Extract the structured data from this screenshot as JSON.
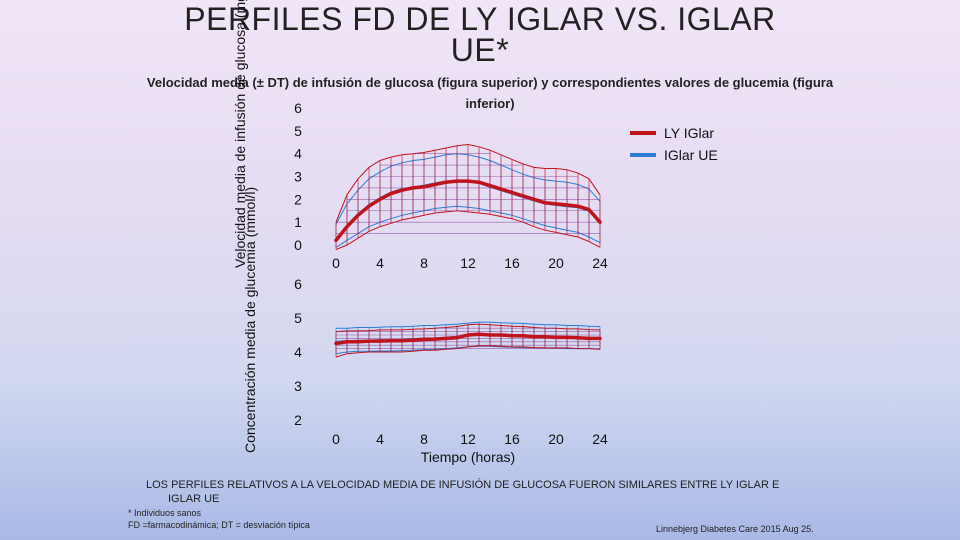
{
  "title": "PERFILES FD DE LY IGLAR VS. IGLAR UE*",
  "subtitle": "Velocidad media (± DT) de infusión de glucosa (figura superior) y correspondientes valores de glucemia (figura inferior)",
  "note": {
    "line1": "LOS PERFILES RELATIVOS A LA VELOCIDAD MEDIA DE INFUSIÓN DE GLUCOSA FUERON SIMILARES ENTRE LY IGLAR E",
    "line2": "IGLAR UE"
  },
  "footnotes": {
    "asterisk": "* Individuos sanos",
    "abbrev": "FD =farmacodinámica; DT = desviación típica"
  },
  "reference": "Linnebjerg Diabetes Care 2015 Aug 25.",
  "colors": {
    "ly": "#c0141c",
    "ue": "#2a7fd4"
  },
  "legend": {
    "ly": "LY IGlar",
    "ue": "IGlar UE"
  },
  "chart_data": [
    {
      "type": "line",
      "title": "",
      "ylabel": "Velocidad media de infusión de glucosa (mg/kg/min)",
      "xlabel": "",
      "xticks": [
        "0",
        "4",
        "8",
        "12",
        "16",
        "20",
        "24"
      ],
      "yticks": [
        "0",
        "1",
        "2",
        "3",
        "4",
        "5",
        "6"
      ],
      "xlim": [
        0,
        24
      ],
      "ylim": [
        0,
        6
      ],
      "series": [
        {
          "name": "LY IGlar",
          "x": [
            0,
            1,
            2,
            3,
            4,
            5,
            6,
            7,
            8,
            9,
            10,
            11,
            12,
            13,
            14,
            15,
            16,
            17,
            18,
            19,
            20,
            21,
            22,
            23,
            24
          ],
          "mean": [
            0.2,
            0.8,
            1.3,
            1.7,
            2.0,
            2.25,
            2.4,
            2.5,
            2.55,
            2.65,
            2.75,
            2.8,
            2.8,
            2.75,
            2.6,
            2.45,
            2.3,
            2.15,
            2.0,
            1.85,
            1.8,
            1.75,
            1.7,
            1.55,
            1.0
          ],
          "upper": [
            1.0,
            2.2,
            2.9,
            3.4,
            3.7,
            3.85,
            3.95,
            4.0,
            4.05,
            4.15,
            4.25,
            4.35,
            4.4,
            4.3,
            4.15,
            3.95,
            3.75,
            3.55,
            3.4,
            3.35,
            3.35,
            3.3,
            3.15,
            2.9,
            2.2
          ],
          "lower": [
            -0.2,
            0.0,
            0.3,
            0.6,
            0.8,
            0.95,
            1.1,
            1.2,
            1.3,
            1.4,
            1.45,
            1.5,
            1.45,
            1.4,
            1.35,
            1.25,
            1.15,
            1.0,
            0.8,
            0.65,
            0.55,
            0.45,
            0.35,
            0.15,
            -0.1
          ]
        },
        {
          "name": "IGlar UE",
          "x": [
            0,
            1,
            2,
            3,
            4,
            5,
            6,
            7,
            8,
            9,
            10,
            11,
            12,
            13,
            14,
            15,
            16,
            17,
            18,
            19,
            20,
            21,
            22,
            23,
            24
          ],
          "mean": [
            0.25,
            0.85,
            1.35,
            1.75,
            2.05,
            2.3,
            2.45,
            2.52,
            2.6,
            2.7,
            2.78,
            2.82,
            2.8,
            2.72,
            2.55,
            2.4,
            2.25,
            2.1,
            1.95,
            1.82,
            1.75,
            1.7,
            1.65,
            1.5,
            1.05
          ],
          "upper": [
            0.9,
            1.8,
            2.4,
            2.9,
            3.2,
            3.45,
            3.6,
            3.7,
            3.75,
            3.85,
            3.95,
            4.0,
            3.95,
            3.85,
            3.7,
            3.5,
            3.3,
            3.1,
            2.95,
            2.85,
            2.8,
            2.75,
            2.65,
            2.45,
            1.9
          ],
          "lower": [
            -0.1,
            0.2,
            0.5,
            0.8,
            1.0,
            1.15,
            1.3,
            1.4,
            1.5,
            1.6,
            1.65,
            1.7,
            1.65,
            1.6,
            1.5,
            1.4,
            1.3,
            1.15,
            1.0,
            0.85,
            0.75,
            0.65,
            0.55,
            0.35,
            0.1
          ]
        }
      ]
    },
    {
      "type": "line",
      "title": "",
      "ylabel": "Concentración media de glucemia (mmol/l)",
      "xlabel": "Tiempo (horas)",
      "xticks": [
        "0",
        "4",
        "8",
        "12",
        "16",
        "20",
        "24"
      ],
      "yticks": [
        "2",
        "3",
        "4",
        "5",
        "6"
      ],
      "xlim": [
        0,
        24
      ],
      "ylim": [
        2,
        6
      ],
      "series": [
        {
          "name": "LY IGlar",
          "x": [
            0,
            1,
            2,
            3,
            4,
            5,
            6,
            7,
            8,
            9,
            10,
            11,
            12,
            13,
            14,
            15,
            16,
            17,
            18,
            19,
            20,
            21,
            22,
            23,
            24
          ],
          "mean": [
            4.25,
            4.3,
            4.3,
            4.32,
            4.32,
            4.33,
            4.33,
            4.35,
            4.37,
            4.38,
            4.4,
            4.42,
            4.5,
            4.52,
            4.5,
            4.5,
            4.48,
            4.48,
            4.45,
            4.45,
            4.43,
            4.43,
            4.42,
            4.4,
            4.4
          ],
          "upper": [
            4.6,
            4.62,
            4.62,
            4.63,
            4.65,
            4.65,
            4.65,
            4.67,
            4.68,
            4.7,
            4.72,
            4.75,
            4.8,
            4.82,
            4.8,
            4.78,
            4.76,
            4.75,
            4.72,
            4.7,
            4.7,
            4.68,
            4.68,
            4.66,
            4.65
          ],
          "lower": [
            3.85,
            3.95,
            3.98,
            4.0,
            4.0,
            4.0,
            4.0,
            4.02,
            4.05,
            4.05,
            4.08,
            4.1,
            4.15,
            4.18,
            4.18,
            4.17,
            4.15,
            4.15,
            4.13,
            4.12,
            4.12,
            4.12,
            4.1,
            4.1,
            4.08
          ]
        },
        {
          "name": "IGlar UE",
          "x": [
            0,
            1,
            2,
            3,
            4,
            5,
            6,
            7,
            8,
            9,
            10,
            11,
            12,
            13,
            14,
            15,
            16,
            17,
            18,
            19,
            20,
            21,
            22,
            23,
            24
          ],
          "mean": [
            4.3,
            4.32,
            4.33,
            4.33,
            4.35,
            4.35,
            4.36,
            4.38,
            4.4,
            4.4,
            4.42,
            4.45,
            4.48,
            4.5,
            4.5,
            4.48,
            4.47,
            4.46,
            4.45,
            4.44,
            4.43,
            4.42,
            4.42,
            4.41,
            4.4
          ],
          "upper": [
            4.7,
            4.7,
            4.72,
            4.72,
            4.73,
            4.74,
            4.74,
            4.76,
            4.78,
            4.78,
            4.8,
            4.82,
            4.85,
            4.88,
            4.88,
            4.86,
            4.85,
            4.84,
            4.82,
            4.8,
            4.8,
            4.78,
            4.78,
            4.76,
            4.75
          ],
          "lower": [
            3.95,
            4.0,
            4.02,
            4.02,
            4.03,
            4.03,
            4.04,
            4.05,
            4.07,
            4.08,
            4.1,
            4.12,
            4.15,
            4.17,
            4.17,
            4.15,
            4.14,
            4.13,
            4.12,
            4.12,
            4.11,
            4.1,
            4.1,
            4.1,
            4.08
          ]
        }
      ]
    }
  ]
}
